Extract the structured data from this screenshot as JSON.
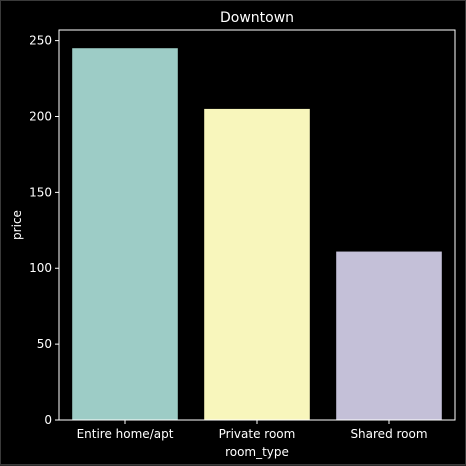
{
  "chart_data": {
    "type": "bar",
    "title": "Downtown",
    "xlabel": "room_type",
    "ylabel": "price",
    "categories": [
      "Entire home/apt",
      "Private room",
      "Shared room"
    ],
    "values": [
      245,
      205,
      111
    ],
    "ylim": [
      0,
      257
    ],
    "yticks": [
      0,
      50,
      100,
      150,
      200,
      250
    ],
    "grid": false,
    "colors": [
      "#9dccc6",
      "#f8f6bc",
      "#c4c0d8"
    ],
    "background": "#000000",
    "axis_color": "#ffffff"
  }
}
